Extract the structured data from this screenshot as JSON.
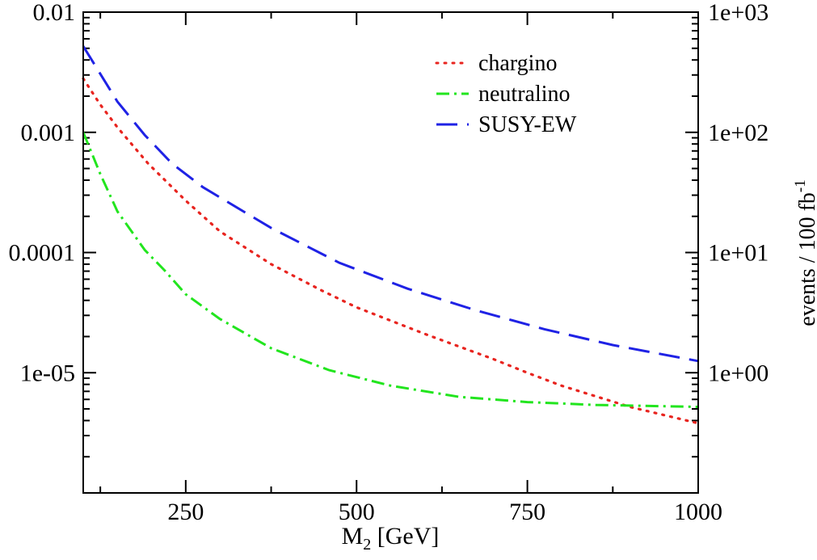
{
  "chart_data": {
    "type": "line",
    "title": "",
    "xlabel": "M",
    "xlabel_sub": "2",
    "xlabel_unit": " [GeV]",
    "ylabel_right": "events / 100 fb",
    "ylabel_right_sup": "-1",
    "xlim": [
      100,
      1000
    ],
    "ylim": [
      1e-06,
      0.01
    ],
    "yscale": "log",
    "x_ticks": [
      250,
      500,
      750,
      1000
    ],
    "x_tick_labels": [
      "250",
      "500",
      "750",
      "1000"
    ],
    "y_ticks": [
      0.01,
      0.001,
      0.0001,
      1e-05
    ],
    "y_tick_labels": [
      "0.01",
      "0.001",
      "0.0001",
      "1e-05"
    ],
    "y2_ticks": [
      0.01,
      0.001,
      0.0001,
      1e-05
    ],
    "y2_tick_labels": [
      "1e+03",
      "1e+02",
      "1e+01",
      "1e+00"
    ],
    "legend_position": "top-right",
    "series": [
      {
        "name": "chargino",
        "color": "#e8241f",
        "style": "dotted",
        "x": [
          100,
          125,
          150,
          195,
          250,
          300,
          375,
          450,
          500,
          600,
          700,
          750,
          800,
          900,
          1000
        ],
        "y": [
          0.0028,
          0.0017,
          0.0011,
          0.00055,
          0.00027,
          0.00015,
          8e-05,
          4.8e-05,
          3.5e-05,
          2.1e-05,
          1.3e-05,
          1e-05,
          7.8e-06,
          5.2e-06,
          3.8e-06
        ]
      },
      {
        "name": "neutralino",
        "color": "#22e51e",
        "style": "dashdot",
        "x": [
          100,
          125,
          150,
          190,
          220,
          250,
          300,
          375,
          460,
          550,
          650,
          750,
          850,
          1000
        ],
        "y": [
          0.001,
          0.00045,
          0.00022,
          0.000105,
          7e-05,
          4.5e-05,
          2.8e-05,
          1.6e-05,
          1.05e-05,
          7.8e-06,
          6.3e-06,
          5.7e-06,
          5.4e-06,
          5.2e-06
        ]
      },
      {
        "name": "SUSY-EW",
        "color": "#1f22e5",
        "style": "dashed",
        "x": [
          100,
          150,
          190,
          230,
          275,
          375,
          475,
          575,
          675,
          775,
          875,
          1000
        ],
        "y": [
          0.0052,
          0.0018,
          0.00095,
          0.00055,
          0.00035,
          0.00016,
          8.2e-05,
          5e-05,
          3.3e-05,
          2.3e-05,
          1.7e-05,
          1.25e-05
        ]
      }
    ]
  }
}
